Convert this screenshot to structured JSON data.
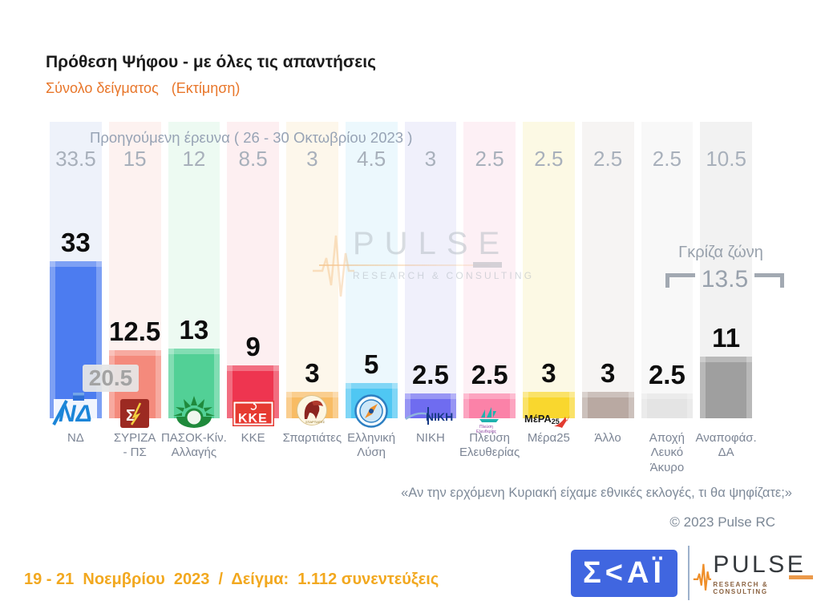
{
  "header": {
    "title": "Πρόθεση Ψήφου - με όλες τις απαντήσεις",
    "sample_label": "Σύνολο δείγματος",
    "estimate_label": "(Εκτίμηση)"
  },
  "previous_survey": {
    "label": "Προηγούμενη έρευνα  ( 26 - 30 Οκτωβρίου 2023 )"
  },
  "lead_badge": {
    "value": "20.5"
  },
  "gray_zone": {
    "label": "Γκρίζα ζώνη",
    "value": "13.5"
  },
  "watermark": {
    "brand": "PULSE",
    "tagline": "RESEARCH & CONSULTING"
  },
  "footer": {
    "question": "«Αν την ερχόμενη Κυριακή είχαμε εθνικές εκλογές, τι θα ψηφίζατε;»",
    "copyright": "© 2023 Pulse RC",
    "fieldwork": "19 - 21  Νοεμβρίου  2023  /  Δείγμα:  1.112 συνεντεύξεις",
    "skai_logo_text": "Σ<ΑΪ",
    "pulse_brand": "PULSE",
    "pulse_tagline": "RESEARCH & CONSULTING"
  },
  "parties": [
    {
      "key": "nd",
      "label": "ΝΔ",
      "value": 33,
      "prev": 33.5,
      "color": "#4c7cf0",
      "tint": "#eef2fa",
      "logo": "nd"
    },
    {
      "key": "syriza",
      "label": "ΣΥΡΙΖΑ\n- ΠΣ",
      "value": 12.5,
      "prev": 15,
      "color": "#f48a7c",
      "tint": "#fdf2f0",
      "logo": "syriza"
    },
    {
      "key": "pasok",
      "label": "ΠΑΣΟΚ-Κίν.\nΑλλαγής",
      "value": 13,
      "prev": 12,
      "color": "#52d096",
      "tint": "#edfaf2",
      "logo": "pasok"
    },
    {
      "key": "kke",
      "label": "ΚΚΕ",
      "value": 9,
      "prev": 8.5,
      "color": "#ee3550",
      "tint": "#fdeff1",
      "logo": "kke"
    },
    {
      "key": "spartiates",
      "label": "Σπαρτιάτες",
      "value": 3,
      "prev": 3,
      "color": "#f8bc64",
      "tint": "#fdf7eb",
      "logo": "spartiates"
    },
    {
      "key": "elliniki-lysi",
      "label": "Ελληνική\nΛύση",
      "value": 5,
      "prev": 4.5,
      "color": "#4fc7f3",
      "tint": "#ecf8fd",
      "logo": "elliniki-lysi"
    },
    {
      "key": "niki",
      "label": "ΝΙΚΗ",
      "value": 2.5,
      "prev": 3,
      "color": "#6f6cf0",
      "tint": "#f0f0fb",
      "logo": "niki"
    },
    {
      "key": "plefsi",
      "label": "Πλεύση\nΕλευθερίας",
      "value": 2.5,
      "prev": 2.5,
      "color": "#fb82a8",
      "tint": "#fdf0f5",
      "logo": "plefsi"
    },
    {
      "key": "mera25",
      "label": "Μέρα25",
      "value": 3,
      "prev": 2.5,
      "color": "#f9d72e",
      "tint": "#fcf9e4",
      "logo": "mera25"
    },
    {
      "key": "allo",
      "label": "Άλλο",
      "value": 3,
      "prev": 2.5,
      "color": "#b9a9a2",
      "tint": "#f6f4f3",
      "logo": null
    },
    {
      "key": "apochi",
      "label": "Αποχή\nΛευκό\nΆκυρο",
      "value": 2.5,
      "prev": 2.5,
      "color": "#e4e4e4",
      "tint": "#f8f8f8",
      "logo": null
    },
    {
      "key": "anapofasistoi",
      "label": "Αναποφάσ.\nΔΑ",
      "value": 11,
      "prev": 10.5,
      "color": "#9f9f9f",
      "tint": "#f2f2f2",
      "logo": null
    }
  ],
  "chart_data": {
    "type": "bar",
    "title": "Πρόθεση Ψήφου - με όλες τις απαντήσεις",
    "subtitle": "Σύνολο δείγματος (Εκτίμηση)",
    "question": "«Αν την ερχόμενη Κυριακή είχαμε εθνικές εκλογές, τι θα ψηφίζατε;»",
    "categories": [
      "ΝΔ",
      "ΣΥΡΙΖΑ - ΠΣ",
      "ΠΑΣΟΚ-Κίν. Αλλαγής",
      "ΚΚΕ",
      "Σπαρτιάτες",
      "Ελληνική Λύση",
      "ΝΙΚΗ",
      "Πλεύση Ελευθερίας",
      "Μέρα25",
      "Άλλο",
      "Αποχή Λευκό Άκυρο",
      "Αναποφάσ. ΔΑ"
    ],
    "series": [
      {
        "name": "Εκτίμηση",
        "values": [
          33,
          12.5,
          13,
          9,
          3,
          5,
          2.5,
          2.5,
          3,
          3,
          2.5,
          11
        ]
      },
      {
        "name": "Προηγούμενη έρευνα ( 26 - 30 Οκτωβρίου 2023 )",
        "values": [
          33.5,
          15,
          12,
          8.5,
          3,
          4.5,
          3,
          2.5,
          2.5,
          2.5,
          2.5,
          10.5
        ]
      }
    ],
    "annotations": {
      "lead_nd_over_syriza": 20.5,
      "gray_zone_label": "Γκρίζα ζώνη",
      "gray_zone_total": 13.5
    },
    "ylim": [
      0,
      35
    ],
    "grid": false,
    "legend_position": "none"
  }
}
